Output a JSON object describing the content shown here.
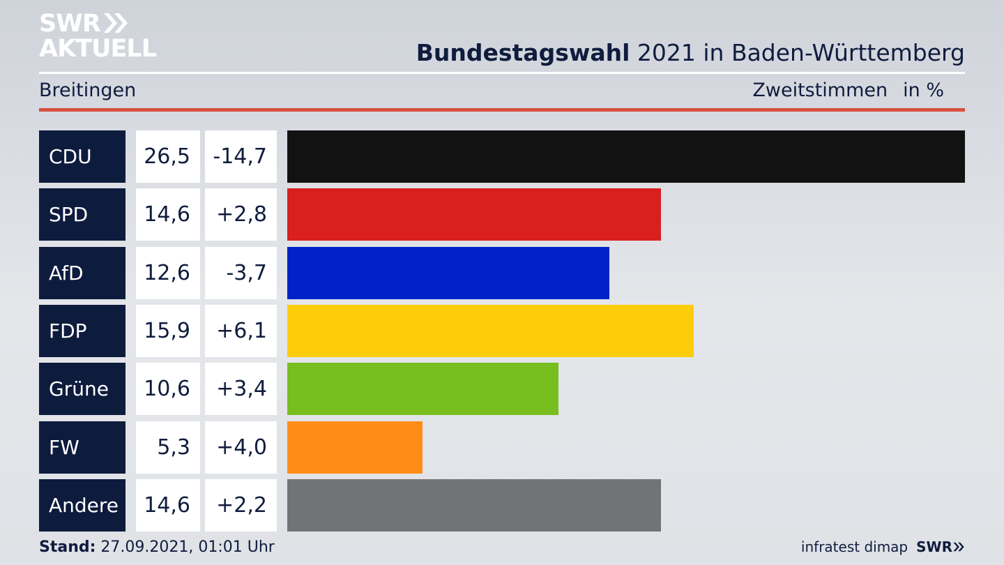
{
  "brand": {
    "logo_line1": "SWR",
    "logo_line2": "AKTUELL",
    "logo_arrows_icon": "double-chevron-right-icon"
  },
  "header": {
    "title_bold": "Bundestagswahl",
    "title_rest": " 2021 in Baden-Württemberg",
    "location": "Breitingen",
    "measure": "Zweitstimmen",
    "unit": "in %"
  },
  "colors": {
    "header_blue": "#0d1b3d",
    "accent_red": "#d5503f"
  },
  "chart_data": {
    "type": "bar",
    "orientation": "horizontal",
    "categories": [
      "CDU",
      "SPD",
      "AfD",
      "FDP",
      "Grüne",
      "FW",
      "Andere"
    ],
    "values": [
      26.5,
      14.6,
      12.6,
      15.9,
      10.6,
      5.3,
      14.6
    ],
    "value_labels": [
      "26,5",
      "14,6",
      "12,6",
      "15,9",
      "10,6",
      "5,3",
      "14,6"
    ],
    "change_labels": [
      "-14,7",
      "+2,8",
      "-3,7",
      "+6,1",
      "+3,4",
      "+4,0",
      "+2,2"
    ],
    "changes": [
      -14.7,
      2.8,
      -3.7,
      6.1,
      3.4,
      4.0,
      2.2
    ],
    "bar_colors": [
      "#121212",
      "#d9201e",
      "#0022c8",
      "#fdcc0b",
      "#78be1e",
      "#fd8d16",
      "#727375"
    ],
    "xlim": [
      0,
      26.5
    ],
    "grid": false,
    "legend": "none"
  },
  "footer": {
    "stand_label": "Stand:",
    "stand_value": " 27.09.2021, 01:01 Uhr",
    "source": "infratest dimap",
    "brand_small": "SWR"
  }
}
